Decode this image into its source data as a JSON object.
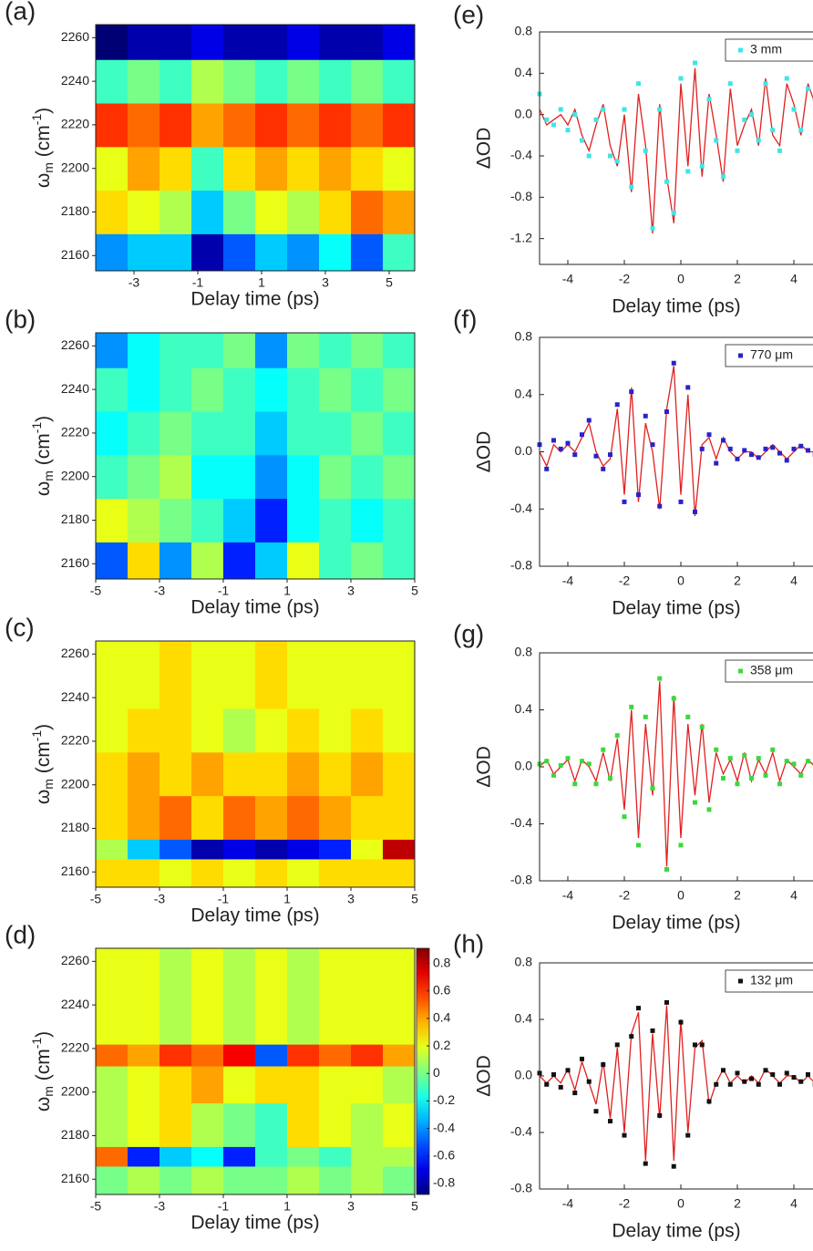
{
  "chart_data": [
    {
      "type": "heatmap",
      "panel_label": "(a)",
      "x_label": "Delay time (ps)",
      "y_label": [
        "ω",
        "m",
        " (cm",
        "-1",
        ")"
      ],
      "xlim": [
        -4.2,
        5.8
      ],
      "ylim": [
        2153,
        2266
      ],
      "xticks": [
        -3,
        -1,
        1,
        3,
        5
      ],
      "yticks": [
        2160,
        2180,
        2200,
        2220,
        2240,
        2260
      ],
      "zlim": [
        -0.88,
        0.91
      ],
      "xbins": [
        -4.2,
        -3.2,
        -2.2,
        -1.2,
        -0.2,
        0.8,
        1.8,
        2.8,
        3.8,
        4.8,
        5.8
      ],
      "ybins": [
        2153,
        2170,
        2190,
        2210,
        2230,
        2250,
        2266
      ],
      "z": [
        [
          -0.4,
          -0.3,
          -0.3,
          -0.8,
          -0.5,
          -0.3,
          -0.4,
          -0.2,
          -0.5,
          -0.1
        ],
        [
          0.3,
          0.2,
          0.1,
          -0.3,
          0.0,
          0.2,
          0.1,
          0.3,
          0.5,
          0.4
        ],
        [
          0.2,
          0.4,
          0.3,
          -0.1,
          0.3,
          0.4,
          0.3,
          0.4,
          0.3,
          0.2
        ],
        [
          0.6,
          0.5,
          0.6,
          0.4,
          0.5,
          0.6,
          0.5,
          0.6,
          0.5,
          0.6
        ],
        [
          -0.1,
          0.0,
          -0.1,
          0.1,
          0.0,
          -0.1,
          0.0,
          -0.1,
          0.0,
          -0.1
        ],
        [
          -0.9,
          -0.8,
          -0.8,
          -0.7,
          -0.8,
          -0.8,
          -0.7,
          -0.8,
          -0.8,
          -0.7
        ]
      ]
    },
    {
      "type": "heatmap",
      "panel_label": "(b)",
      "x_label": "Delay time (ps)",
      "y_label": [
        "ω",
        "m",
        " (cm",
        "-1",
        ")"
      ],
      "xlim": [
        -5,
        5
      ],
      "ylim": [
        2153,
        2266
      ],
      "xticks": [
        -5,
        -3,
        -1,
        1,
        3,
        5
      ],
      "yticks": [
        2160,
        2180,
        2200,
        2220,
        2240,
        2260
      ],
      "zlim": [
        -0.88,
        0.91
      ],
      "xbins": [
        -5,
        -4,
        -3,
        -2,
        -1,
        0,
        1,
        2,
        3,
        4,
        5
      ],
      "ybins": [
        2153,
        2170,
        2190,
        2210,
        2230,
        2250,
        2266
      ],
      "z": [
        [
          -0.5,
          0.3,
          -0.4,
          0.1,
          -0.6,
          -0.3,
          0.2,
          -0.1,
          0.0,
          -0.1
        ],
        [
          0.2,
          0.1,
          0.0,
          -0.1,
          -0.3,
          -0.6,
          -0.2,
          -0.1,
          -0.2,
          -0.1
        ],
        [
          -0.1,
          0.0,
          0.1,
          -0.2,
          -0.2,
          -0.4,
          -0.2,
          0.0,
          -0.1,
          0.0
        ],
        [
          -0.2,
          -0.1,
          0.0,
          -0.1,
          -0.1,
          -0.3,
          -0.1,
          -0.1,
          0.0,
          -0.1
        ],
        [
          -0.1,
          -0.2,
          -0.1,
          0.0,
          -0.1,
          -0.2,
          -0.1,
          0.0,
          -0.1,
          0.0
        ],
        [
          -0.4,
          -0.2,
          -0.1,
          -0.1,
          0.0,
          -0.4,
          0.0,
          -0.1,
          0.0,
          -0.1
        ]
      ]
    },
    {
      "type": "heatmap",
      "panel_label": "(c)",
      "x_label": "Delay time (ps)",
      "y_label": [
        "ω",
        "m",
        " (cm",
        "-1",
        ")"
      ],
      "xlim": [
        -5,
        5
      ],
      "ylim": [
        2153,
        2266
      ],
      "xticks": [
        -5,
        -3,
        -1,
        1,
        3,
        5
      ],
      "yticks": [
        2160,
        2180,
        2200,
        2220,
        2240,
        2260
      ],
      "zlim": [
        -0.88,
        0.91
      ],
      "xbins": [
        -5,
        -4,
        -3,
        -2,
        -1,
        0,
        1,
        2,
        3,
        4,
        5
      ],
      "ybins": [
        2153,
        2166,
        2175,
        2195,
        2215,
        2235,
        2266
      ],
      "z": [
        [
          0.3,
          0.3,
          0.2,
          0.3,
          0.2,
          0.3,
          0.2,
          0.3,
          0.3,
          0.3
        ],
        [
          0.1,
          -0.3,
          -0.5,
          -0.8,
          -0.7,
          -0.8,
          -0.7,
          -0.6,
          0.2,
          0.8
        ],
        [
          0.3,
          0.4,
          0.5,
          0.3,
          0.5,
          0.4,
          0.5,
          0.4,
          0.3,
          0.3
        ],
        [
          0.3,
          0.4,
          0.3,
          0.4,
          0.3,
          0.3,
          0.4,
          0.3,
          0.4,
          0.3
        ],
        [
          0.2,
          0.3,
          0.3,
          0.2,
          0.1,
          0.2,
          0.3,
          0.2,
          0.3,
          0.2
        ],
        [
          0.2,
          0.2,
          0.3,
          0.2,
          0.2,
          0.3,
          0.2,
          0.2,
          0.2,
          0.2
        ]
      ]
    },
    {
      "type": "heatmap",
      "panel_label": "(d)",
      "x_label": "Delay time (ps)",
      "y_label": [
        "ω",
        "m",
        " (cm",
        "-1",
        ")"
      ],
      "xlim": [
        -5,
        5
      ],
      "ylim": [
        2153,
        2266
      ],
      "xticks": [
        -5,
        -3,
        -1,
        1,
        3,
        5
      ],
      "yticks": [
        2160,
        2180,
        2200,
        2220,
        2240,
        2260
      ],
      "zlim": [
        -0.88,
        0.91
      ],
      "colorbar_ticks": [
        -0.8,
        -0.6,
        -0.4,
        -0.2,
        0,
        0.2,
        0.4,
        0.6,
        0.8
      ],
      "xbins": [
        -5,
        -4,
        -3,
        -2,
        -1,
        0,
        1,
        2,
        3,
        4,
        5
      ],
      "ybins": [
        2153,
        2166,
        2175,
        2195,
        2212,
        2222,
        2266
      ],
      "z": [
        [
          0.0,
          0.1,
          0.0,
          0.1,
          0.0,
          0.0,
          0.1,
          0.0,
          0.1,
          0.0
        ],
        [
          0.5,
          -0.6,
          -0.3,
          -0.2,
          -0.6,
          -0.1,
          0.0,
          -0.1,
          0.1,
          0.1
        ],
        [
          0.1,
          0.2,
          0.3,
          0.1,
          0.0,
          -0.1,
          0.3,
          0.2,
          0.1,
          0.2
        ],
        [
          0.1,
          0.2,
          0.3,
          0.4,
          0.2,
          0.3,
          0.3,
          0.2,
          0.2,
          0.1
        ],
        [
          0.5,
          0.4,
          0.6,
          0.5,
          0.7,
          -0.5,
          0.6,
          0.5,
          0.6,
          0.4
        ],
        [
          0.2,
          0.2,
          0.1,
          0.2,
          0.1,
          0.2,
          0.1,
          0.2,
          0.2,
          0.2
        ]
      ]
    },
    {
      "type": "line",
      "panel_label": "(e)",
      "x_label": "Delay time (ps)",
      "y_label": "ΔOD",
      "xlim": [
        -5,
        5
      ],
      "ylim": [
        -1.45,
        0.8
      ],
      "xticks": [
        -4,
        -2,
        0,
        2,
        4
      ],
      "yticks": [
        -1.2,
        -0.8,
        -0.4,
        {
          "value": 0,
          "label": "0.0"
        },
        0.4,
        0.8
      ],
      "x": [
        -5,
        -4.75,
        -4.5,
        -4.25,
        -4,
        -3.75,
        -3.5,
        -3.25,
        -3,
        -2.75,
        -2.5,
        -2.25,
        -2,
        -1.75,
        -1.5,
        -1.25,
        -1,
        -0.75,
        -0.5,
        -0.25,
        0,
        0.25,
        0.5,
        0.75,
        1,
        1.25,
        1.5,
        1.75,
        2,
        2.25,
        2.5,
        2.75,
        3,
        3.25,
        3.5,
        3.75,
        4,
        4.25,
        4.5,
        4.75
      ],
      "series": [
        {
          "name": "3 mm",
          "color": "#3ee6e6",
          "values": [
            0.2,
            -0.05,
            -0.1,
            0.05,
            -0.15,
            0.0,
            -0.25,
            -0.4,
            -0.05,
            0.05,
            -0.4,
            -0.45,
            0.05,
            -0.7,
            0.3,
            -0.35,
            -1.1,
            0.05,
            -0.65,
            -0.95,
            0.35,
            -0.55,
            0.5,
            -0.5,
            0.15,
            -0.25,
            -0.6,
            0.3,
            -0.35,
            -0.05,
            0.0,
            -0.25,
            0.3,
            -0.15,
            -0.35,
            0.35,
            0.05,
            -0.15,
            0.25,
            0.15
          ]
        },
        {
          "color": "#e02020",
          "values": [
            0.05,
            -0.1,
            -0.05,
            0.0,
            -0.1,
            0.05,
            -0.2,
            -0.35,
            -0.1,
            0.1,
            -0.3,
            -0.5,
            0.0,
            -0.75,
            0.2,
            -0.3,
            -1.15,
            0.1,
            -0.6,
            -1.05,
            0.3,
            -0.5,
            0.45,
            -0.6,
            0.2,
            -0.2,
            -0.65,
            0.25,
            -0.3,
            -0.1,
            0.05,
            -0.3,
            0.35,
            -0.2,
            -0.3,
            0.3,
            0.1,
            -0.2,
            0.3,
            0.1
          ]
        }
      ]
    },
    {
      "type": "line",
      "panel_label": "(f)",
      "x_label": "Delay time (ps)",
      "y_label": "ΔOD",
      "xlim": [
        -5,
        5
      ],
      "ylim": [
        -0.8,
        0.8
      ],
      "xticks": [
        -4,
        -2,
        0,
        2,
        4
      ],
      "yticks": [
        -0.8,
        -0.4,
        {
          "value": 0,
          "label": "0.0"
        },
        0.4,
        0.8
      ],
      "x": [
        -5,
        -4.75,
        -4.5,
        -4.25,
        -4,
        -3.75,
        -3.5,
        -3.25,
        -3,
        -2.75,
        -2.5,
        -2.25,
        -2,
        -1.75,
        -1.5,
        -1.25,
        -1,
        -0.75,
        -0.5,
        -0.25,
        0,
        0.25,
        0.5,
        0.75,
        1,
        1.25,
        1.5,
        1.75,
        2,
        2.25,
        2.5,
        2.75,
        3,
        3.25,
        3.5,
        3.75,
        4,
        4.25,
        4.5,
        4.75
      ],
      "series": [
        {
          "name": "770 μm",
          "color": "#2a22c8",
          "values": [
            0.05,
            -0.12,
            0.08,
            0.02,
            0.06,
            -0.02,
            0.12,
            0.22,
            -0.03,
            -0.12,
            -0.02,
            0.33,
            -0.35,
            0.42,
            -0.3,
            0.25,
            0.05,
            -0.38,
            0.28,
            0.62,
            -0.35,
            0.45,
            -0.42,
            0.02,
            0.12,
            -0.08,
            0.08,
            0.02,
            -0.05,
            0.01,
            -0.02,
            -0.04,
            0.02,
            0.03,
            -0.01,
            -0.06,
            0.02,
            0.04,
            0.01,
            -0.02
          ]
        },
        {
          "color": "#e02020",
          "values": [
            0.0,
            -0.1,
            0.05,
            0.0,
            0.05,
            0.0,
            0.1,
            0.2,
            0.0,
            -0.1,
            -0.05,
            0.3,
            -0.3,
            0.45,
            -0.35,
            0.2,
            0.0,
            -0.4,
            0.3,
            0.6,
            -0.3,
            0.4,
            -0.45,
            0.05,
            0.1,
            -0.05,
            0.1,
            0.0,
            -0.05,
            0.0,
            0.0,
            -0.05,
            0.0,
            0.05,
            0.0,
            -0.05,
            0.0,
            0.05,
            0.0,
            0.0
          ]
        }
      ]
    },
    {
      "type": "line",
      "panel_label": "(g)",
      "x_label": "Delay time (ps)",
      "y_label": "ΔOD",
      "xlim": [
        -5,
        5
      ],
      "ylim": [
        -0.8,
        0.8
      ],
      "xticks": [
        -4,
        -2,
        0,
        2,
        4
      ],
      "yticks": [
        -0.8,
        -0.4,
        {
          "value": 0,
          "label": "0.0"
        },
        0.4,
        0.8
      ],
      "x": [
        -5,
        -4.75,
        -4.5,
        -4.25,
        -4,
        -3.75,
        -3.5,
        -3.25,
        -3,
        -2.75,
        -2.5,
        -2.25,
        -2,
        -1.75,
        -1.5,
        -1.25,
        -1,
        -0.75,
        -0.5,
        -0.25,
        0,
        0.25,
        0.5,
        0.75,
        1,
        1.25,
        1.5,
        1.75,
        2,
        2.25,
        2.5,
        2.75,
        3,
        3.25,
        3.5,
        3.75,
        4,
        4.25,
        4.5,
        4.75
      ],
      "series": [
        {
          "name": "358 μm",
          "color": "#3cd83c",
          "values": [
            0.02,
            0.04,
            -0.06,
            0.01,
            0.06,
            -0.12,
            0.04,
            0.02,
            -0.12,
            0.12,
            -0.08,
            0.22,
            -0.35,
            0.42,
            -0.55,
            0.35,
            -0.15,
            0.62,
            -0.72,
            0.48,
            -0.55,
            0.35,
            -0.25,
            0.28,
            -0.3,
            0.12,
            -0.08,
            0.06,
            -0.12,
            0.08,
            -0.08,
            0.06,
            -0.06,
            0.12,
            -0.12,
            0.04,
            0.02,
            -0.06,
            0.04,
            0.02
          ]
        },
        {
          "color": "#e02020",
          "values": [
            0.0,
            0.05,
            -0.05,
            0.0,
            0.05,
            -0.1,
            0.05,
            0.0,
            -0.1,
            0.1,
            -0.1,
            0.2,
            -0.3,
            0.4,
            -0.5,
            0.3,
            -0.2,
            0.6,
            -0.7,
            0.5,
            -0.5,
            0.3,
            -0.2,
            0.3,
            -0.25,
            0.1,
            -0.05,
            0.05,
            -0.1,
            0.1,
            -0.1,
            0.05,
            -0.05,
            0.1,
            -0.1,
            0.05,
            0.0,
            -0.05,
            0.05,
            0.0
          ]
        }
      ]
    },
    {
      "type": "line",
      "panel_label": "(h)",
      "x_label": "Delay time (ps)",
      "y_label": "ΔOD",
      "xlim": [
        -5,
        5
      ],
      "ylim": [
        -0.8,
        0.8
      ],
      "xticks": [
        -4,
        -2,
        0,
        2,
        4
      ],
      "yticks": [
        -0.8,
        -0.4,
        {
          "value": 0,
          "label": "0.0"
        },
        0.4,
        0.8
      ],
      "x": [
        -5,
        -4.75,
        -4.5,
        -4.25,
        -4,
        -3.75,
        -3.5,
        -3.25,
        -3,
        -2.75,
        -2.5,
        -2.25,
        -2,
        -1.75,
        -1.5,
        -1.25,
        -1,
        -0.75,
        -0.5,
        -0.25,
        0,
        0.25,
        0.5,
        0.75,
        1,
        1.25,
        1.5,
        1.75,
        2,
        2.25,
        2.5,
        2.75,
        3,
        3.25,
        3.5,
        3.75,
        4,
        4.25,
        4.5,
        4.75
      ],
      "series": [
        {
          "name": "132 μm",
          "color": "#111111",
          "values": [
            0.02,
            -0.06,
            0.01,
            -0.08,
            0.04,
            -0.12,
            0.12,
            -0.04,
            -0.25,
            0.08,
            -0.32,
            0.22,
            -0.42,
            0.28,
            0.48,
            -0.62,
            0.32,
            -0.28,
            0.52,
            -0.64,
            0.38,
            -0.42,
            0.22,
            0.22,
            -0.18,
            -0.06,
            0.04,
            -0.06,
            0.02,
            -0.04,
            -0.02,
            -0.06,
            0.04,
            0.01,
            -0.06,
            0.02,
            -0.01,
            -0.04,
            0.01,
            -0.06
          ]
        },
        {
          "color": "#e02020",
          "values": [
            0.0,
            -0.05,
            0.0,
            -0.05,
            0.05,
            -0.1,
            0.1,
            -0.05,
            -0.2,
            0.1,
            -0.3,
            0.2,
            -0.4,
            0.3,
            0.45,
            -0.6,
            0.3,
            -0.3,
            0.5,
            -0.6,
            0.4,
            -0.4,
            0.2,
            0.25,
            -0.2,
            -0.05,
            0.05,
            -0.05,
            0.0,
            -0.05,
            0.0,
            -0.05,
            0.05,
            0.0,
            -0.05,
            0.0,
            0.0,
            -0.05,
            0.0,
            -0.05
          ]
        }
      ]
    }
  ]
}
